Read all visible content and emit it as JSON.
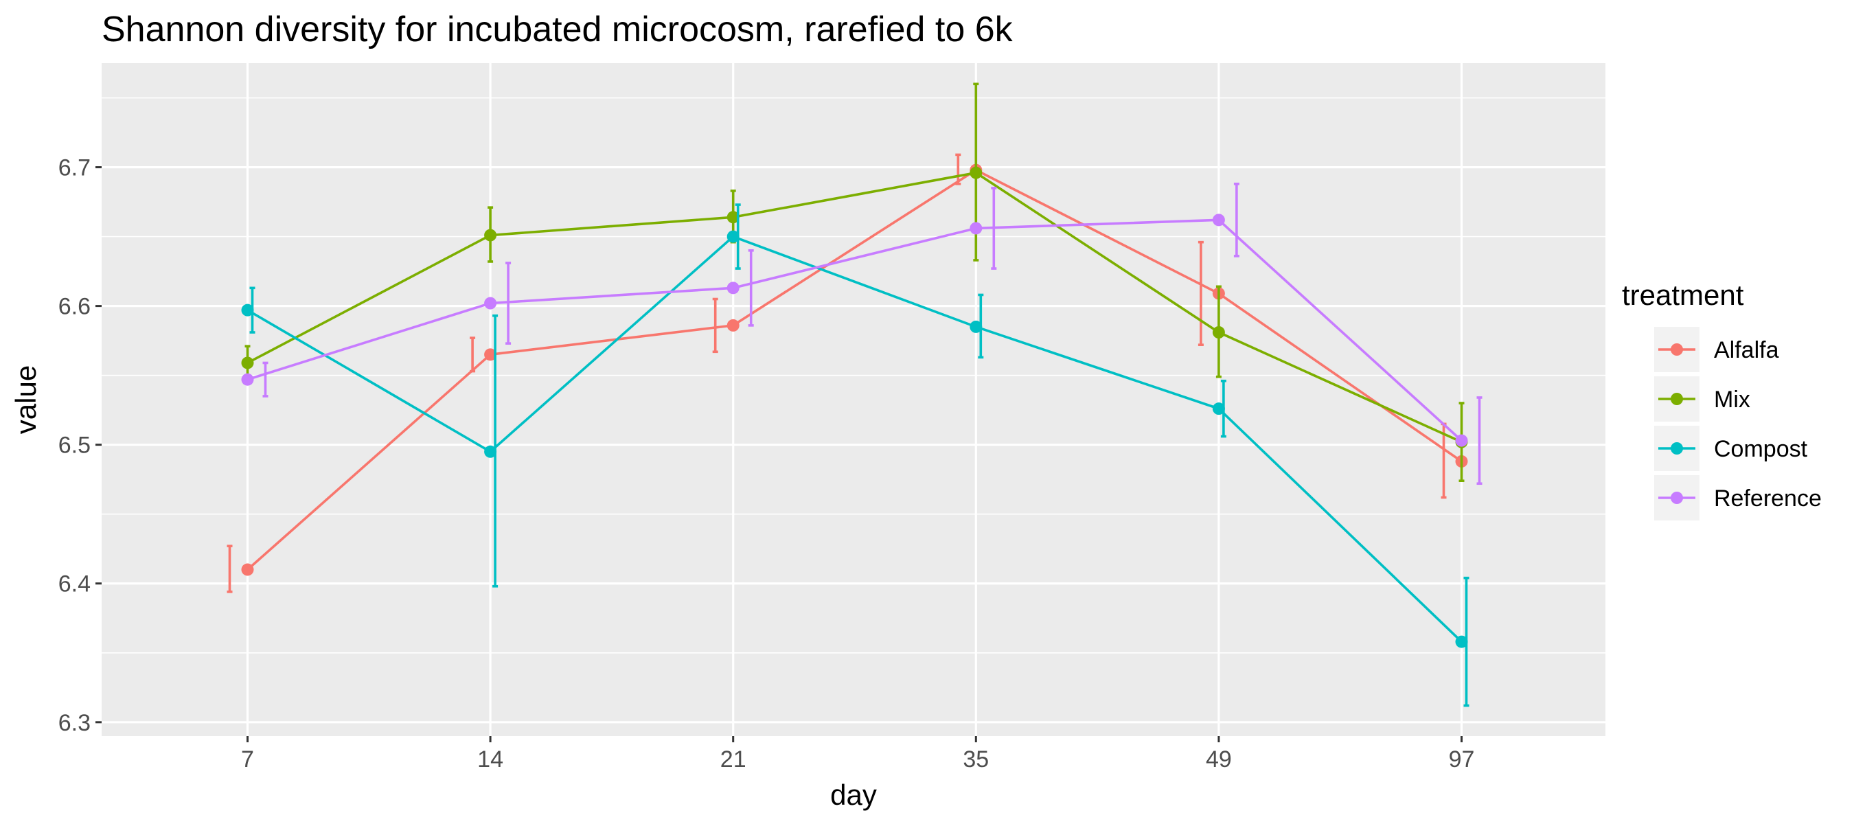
{
  "chart_data": {
    "type": "line",
    "title": "Shannon diversity for incubated microcosm, rarefied to 6k",
    "xlabel": "day",
    "ylabel": "value",
    "categories": [
      "7",
      "14",
      "21",
      "35",
      "49",
      "97"
    ],
    "ylim": [
      6.29,
      6.775
    ],
    "yticks": [
      6.3,
      6.4,
      6.5,
      6.6,
      6.7
    ],
    "ytick_labels": [
      "6.3",
      "6.4",
      "6.5",
      "6.6",
      "6.7"
    ],
    "grid": true,
    "legend": {
      "title": "treatment",
      "position": "right"
    },
    "error_bars": true,
    "series": [
      {
        "name": "Alfalfa",
        "color": "#F8766D",
        "values": [
          6.41,
          6.565,
          6.586,
          6.698,
          6.609,
          6.488
        ],
        "errors": [
          {
            "center": 6.41,
            "low": 6.394,
            "high": 6.427
          },
          {
            "center": 6.565,
            "low": 6.553,
            "high": 6.577
          },
          {
            "center": 6.586,
            "low": 6.567,
            "high": 6.605
          },
          {
            "center": 6.698,
            "low": 6.688,
            "high": 6.709
          },
          {
            "center": 6.609,
            "low": 6.572,
            "high": 6.646
          },
          {
            "center": 6.488,
            "low": 6.462,
            "high": 6.515
          }
        ]
      },
      {
        "name": "Mix",
        "color": "#7CAE00",
        "values": [
          6.559,
          6.651,
          6.664,
          6.696,
          6.581,
          6.502
        ],
        "errors": [
          {
            "center": 6.559,
            "low": 6.548,
            "high": 6.571
          },
          {
            "center": 6.651,
            "low": 6.632,
            "high": 6.671
          },
          {
            "center": 6.664,
            "low": 6.646,
            "high": 6.683
          },
          {
            "center": 6.696,
            "low": 6.633,
            "high": 6.76
          },
          {
            "center": 6.581,
            "low": 6.549,
            "high": 6.614
          },
          {
            "center": 6.502,
            "low": 6.474,
            "high": 6.53
          }
        ]
      },
      {
        "name": "Compost",
        "color": "#00BFC4",
        "values": [
          6.597,
          6.495,
          6.65,
          6.585,
          6.526,
          6.358
        ],
        "errors": [
          {
            "center": 6.597,
            "low": 6.581,
            "high": 6.613
          },
          {
            "center": 6.495,
            "low": 6.398,
            "high": 6.593
          },
          {
            "center": 6.65,
            "low": 6.627,
            "high": 6.673
          },
          {
            "center": 6.585,
            "low": 6.563,
            "high": 6.608
          },
          {
            "center": 6.526,
            "low": 6.506,
            "high": 6.546
          },
          {
            "center": 6.358,
            "low": 6.312,
            "high": 6.404
          }
        ]
      },
      {
        "name": "Reference",
        "color": "#C77CFF",
        "values": [
          6.547,
          6.602,
          6.613,
          6.656,
          6.662,
          6.503
        ],
        "errors": [
          {
            "center": 6.547,
            "low": 6.535,
            "high": 6.559
          },
          {
            "center": 6.602,
            "low": 6.573,
            "high": 6.631
          },
          {
            "center": 6.613,
            "low": 6.586,
            "high": 6.64
          },
          {
            "center": 6.656,
            "low": 6.627,
            "high": 6.685
          },
          {
            "center": 6.662,
            "low": 6.636,
            "high": 6.688
          },
          {
            "center": 6.503,
            "low": 6.472,
            "high": 6.534
          }
        ]
      }
    ]
  }
}
